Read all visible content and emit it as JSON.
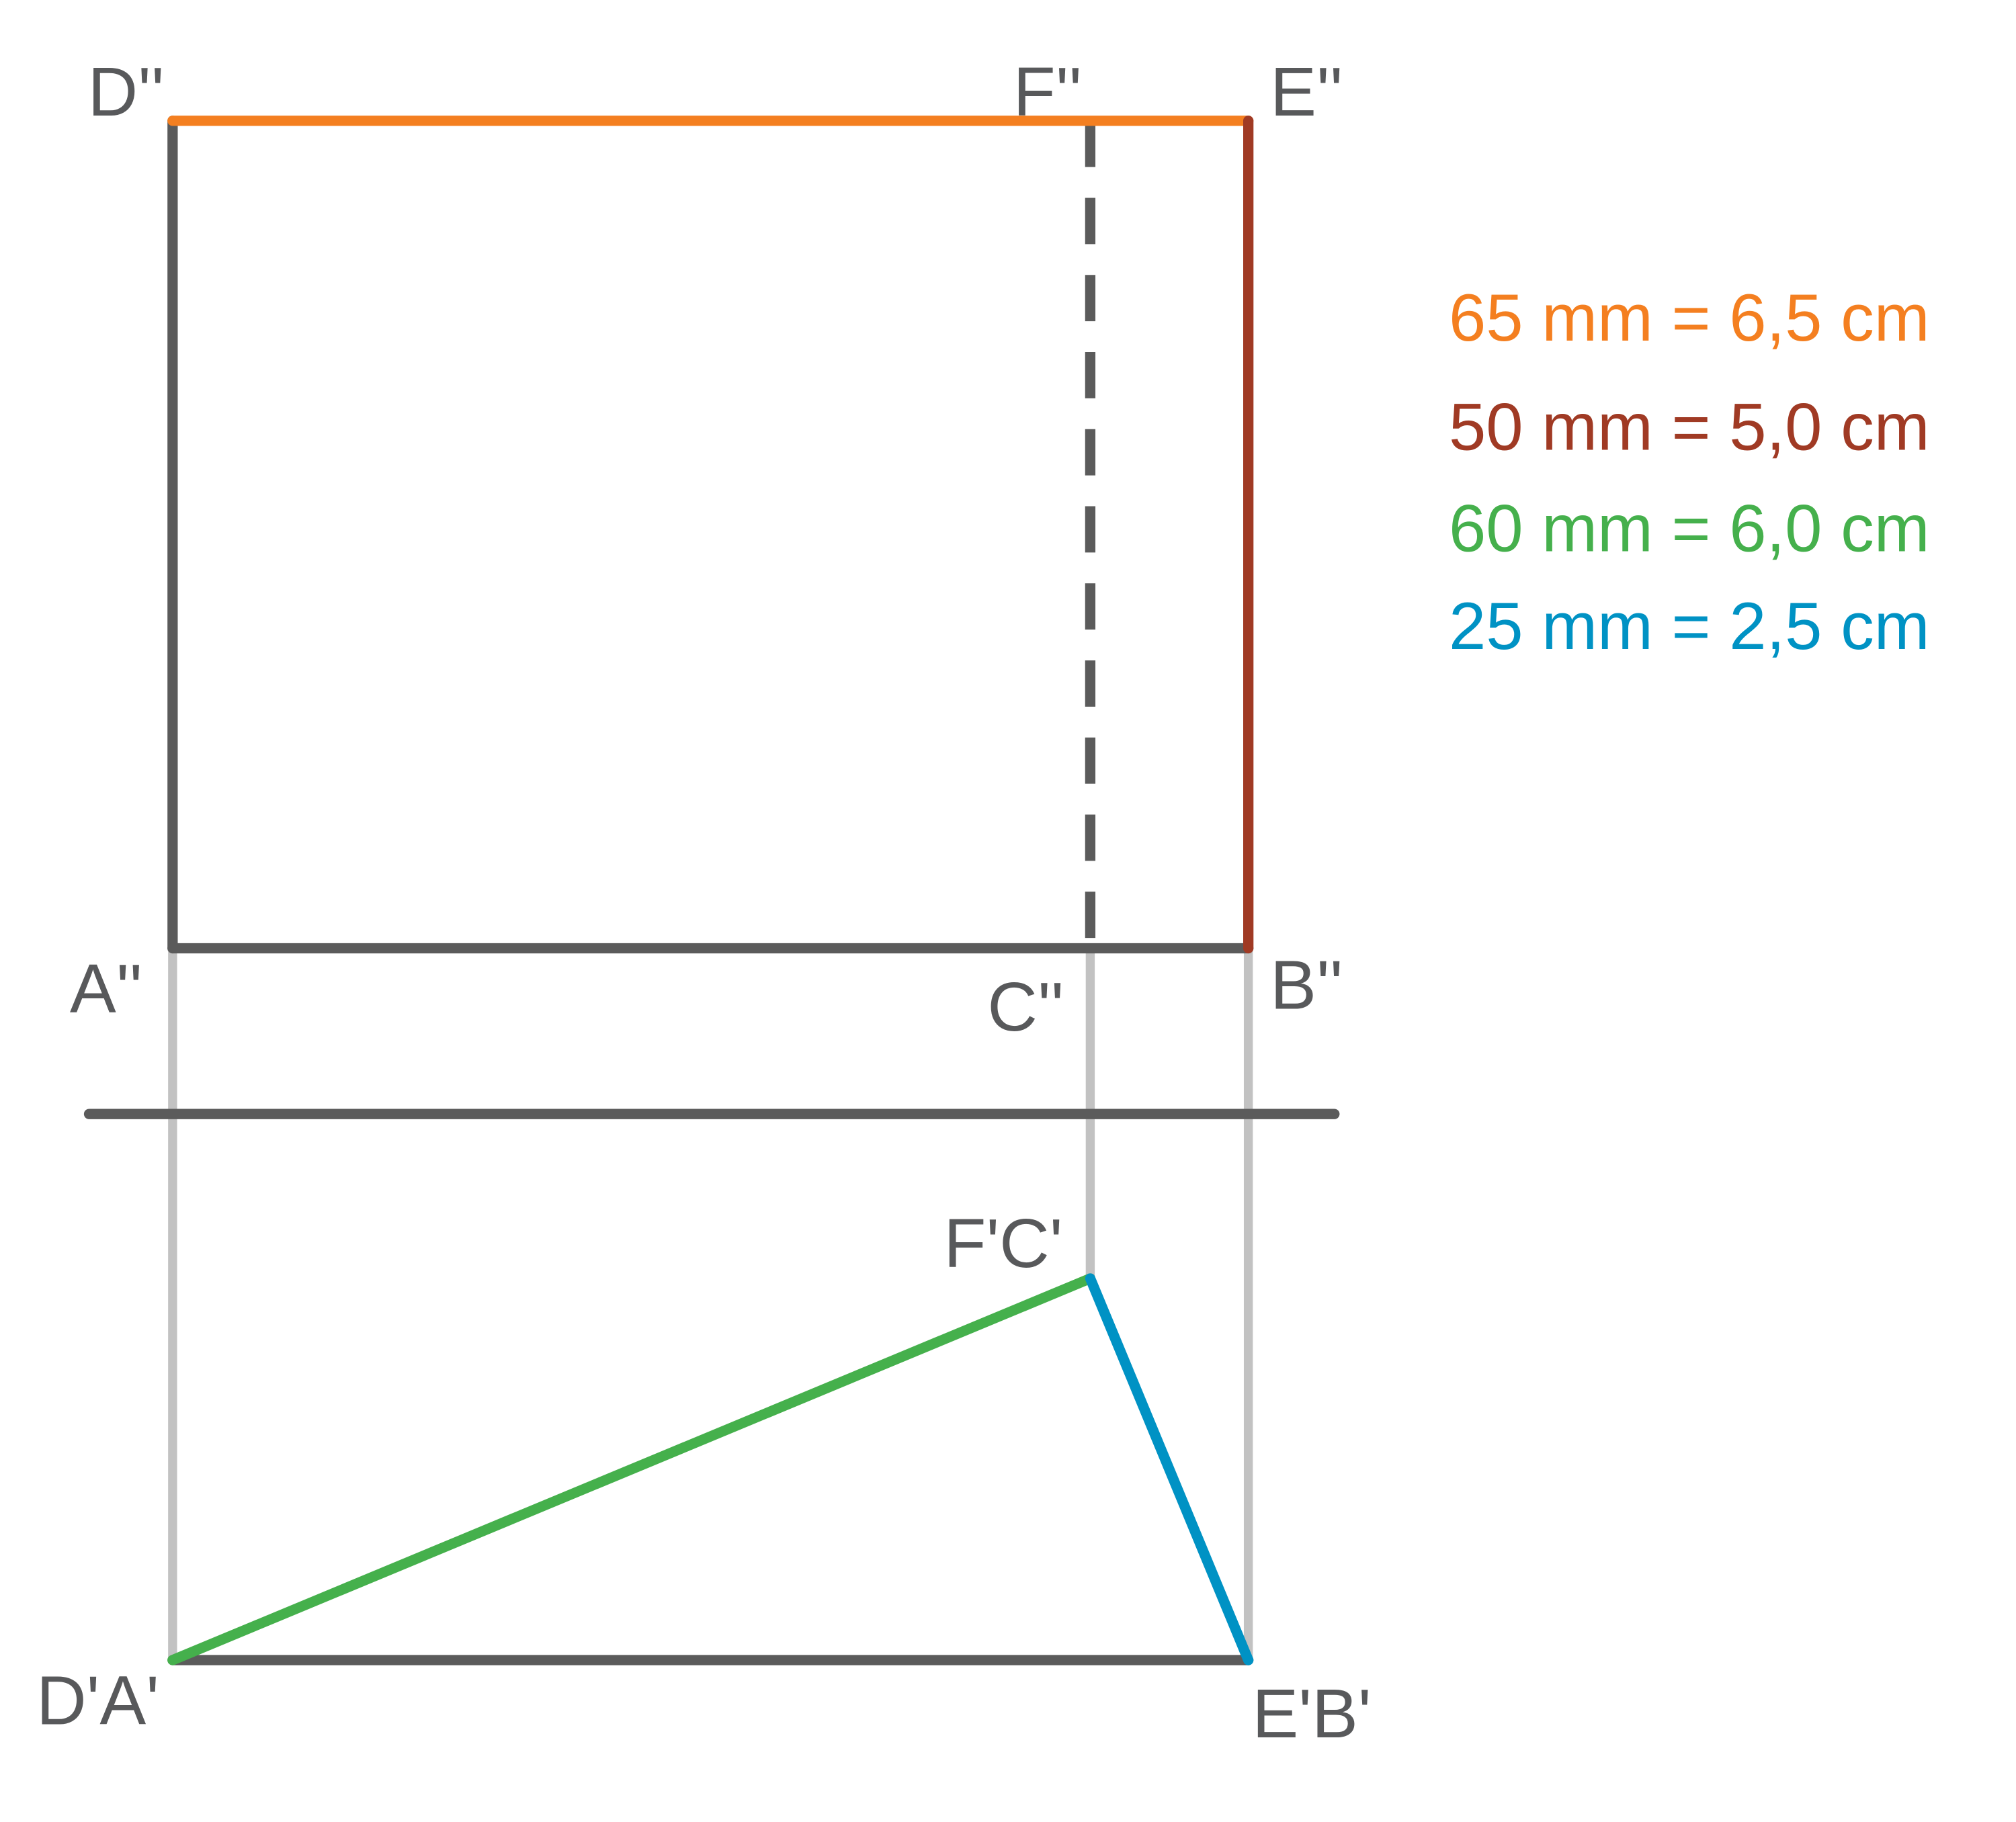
{
  "labels": {
    "d2": "D''",
    "f2": "F''",
    "e2": "E''",
    "a2": "A''",
    "c2": "C''",
    "b2": "B''",
    "fc1": "F'C'",
    "da1": "D'A'",
    "eb1": "E'B'"
  },
  "legend": [
    "65 mm = 6,5 cm",
    "50 mm = 5,0 cm",
    "60 mm = 6,0 cm",
    "25 mm = 2,5 cm"
  ]
}
